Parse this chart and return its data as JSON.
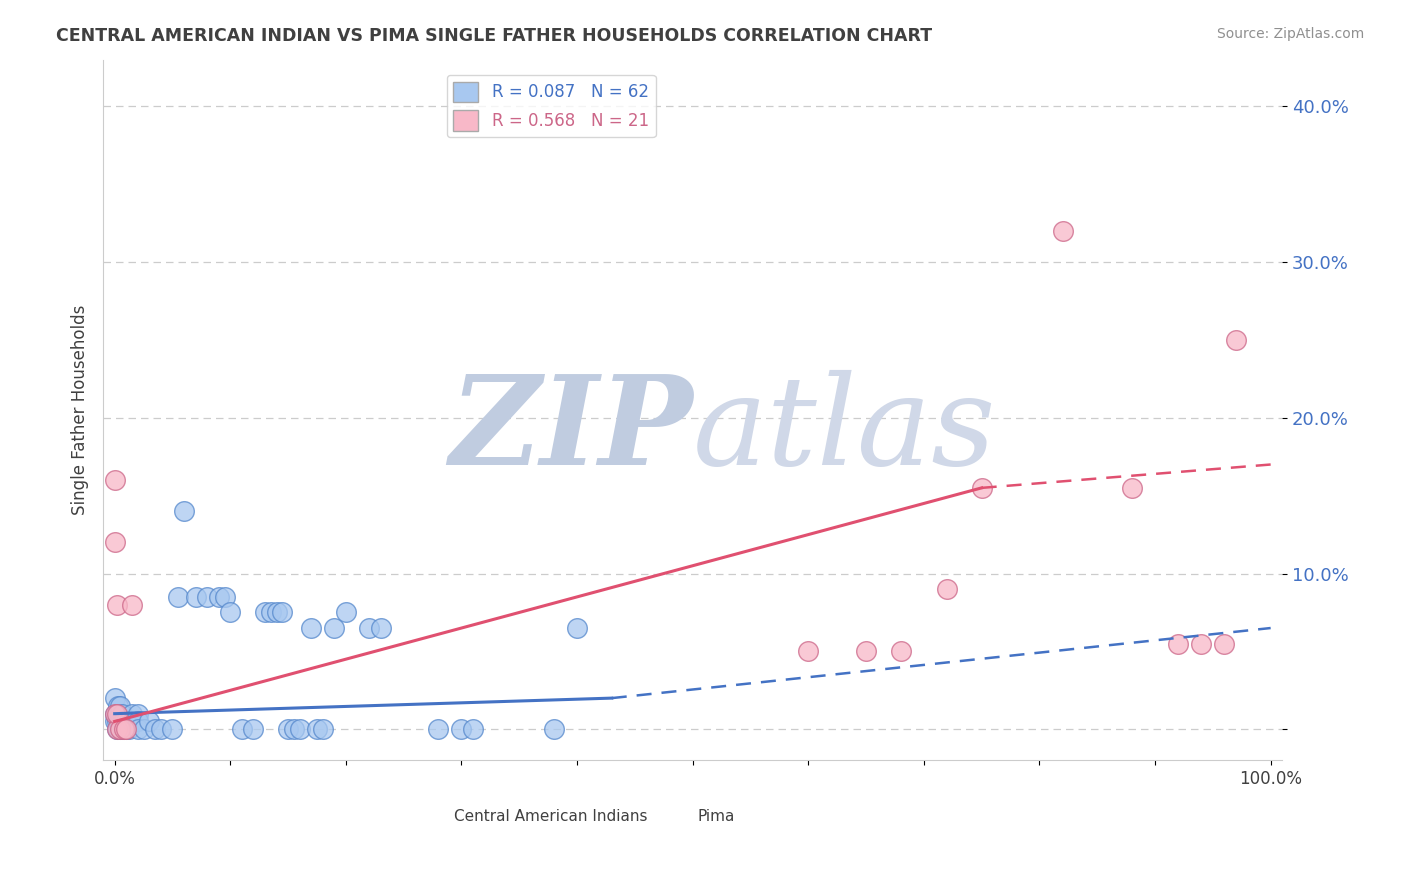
{
  "title": "CENTRAL AMERICAN INDIAN VS PIMA SINGLE FATHER HOUSEHOLDS CORRELATION CHART",
  "source": "Source: ZipAtlas.com",
  "ylabel": "Single Father Households",
  "watermark_zip": "ZIP",
  "watermark_atlas": "atlas",
  "legend_entries": [
    {
      "label": "R = 0.087   N = 62",
      "color": "#a8c8f0"
    },
    {
      "label": "R = 0.568   N = 21",
      "color": "#f8b8c8"
    }
  ],
  "blue_scatter": [
    [
      0.0,
      0.005
    ],
    [
      0.0,
      0.01
    ],
    [
      0.0,
      0.02
    ],
    [
      0.002,
      0.0
    ],
    [
      0.002,
      0.005
    ],
    [
      0.003,
      0.015
    ],
    [
      0.003,
      0.0
    ],
    [
      0.004,
      0.01
    ],
    [
      0.004,
      0.005
    ],
    [
      0.005,
      0.0
    ],
    [
      0.005,
      0.005
    ],
    [
      0.005,
      0.01
    ],
    [
      0.005,
      0.015
    ],
    [
      0.006,
      0.0
    ],
    [
      0.006,
      0.005
    ],
    [
      0.006,
      0.01
    ],
    [
      0.007,
      0.005
    ],
    [
      0.007,
      0.0
    ],
    [
      0.008,
      0.0
    ],
    [
      0.008,
      0.005
    ],
    [
      0.01,
      0.0
    ],
    [
      0.01,
      0.005
    ],
    [
      0.012,
      0.005
    ],
    [
      0.012,
      0.0
    ],
    [
      0.015,
      0.01
    ],
    [
      0.015,
      0.005
    ],
    [
      0.02,
      0.01
    ],
    [
      0.02,
      0.005
    ],
    [
      0.02,
      0.0
    ],
    [
      0.025,
      0.0
    ],
    [
      0.03,
      0.005
    ],
    [
      0.035,
      0.0
    ],
    [
      0.04,
      0.0
    ],
    [
      0.05,
      0.0
    ],
    [
      0.055,
      0.085
    ],
    [
      0.06,
      0.14
    ],
    [
      0.07,
      0.085
    ],
    [
      0.08,
      0.085
    ],
    [
      0.09,
      0.085
    ],
    [
      0.095,
      0.085
    ],
    [
      0.1,
      0.075
    ],
    [
      0.11,
      0.0
    ],
    [
      0.12,
      0.0
    ],
    [
      0.13,
      0.075
    ],
    [
      0.135,
      0.075
    ],
    [
      0.14,
      0.075
    ],
    [
      0.145,
      0.075
    ],
    [
      0.15,
      0.0
    ],
    [
      0.155,
      0.0
    ],
    [
      0.16,
      0.0
    ],
    [
      0.17,
      0.065
    ],
    [
      0.175,
      0.0
    ],
    [
      0.18,
      0.0
    ],
    [
      0.19,
      0.065
    ],
    [
      0.2,
      0.075
    ],
    [
      0.22,
      0.065
    ],
    [
      0.23,
      0.065
    ],
    [
      0.28,
      0.0
    ],
    [
      0.3,
      0.0
    ],
    [
      0.31,
      0.0
    ],
    [
      0.38,
      0.0
    ],
    [
      0.4,
      0.065
    ]
  ],
  "pink_scatter": [
    [
      0.0,
      0.01
    ],
    [
      0.0,
      0.12
    ],
    [
      0.0,
      0.16
    ],
    [
      0.002,
      0.0
    ],
    [
      0.002,
      0.01
    ],
    [
      0.002,
      0.08
    ],
    [
      0.005,
      0.0
    ],
    [
      0.008,
      0.0
    ],
    [
      0.01,
      0.0
    ],
    [
      0.015,
      0.08
    ],
    [
      0.6,
      0.05
    ],
    [
      0.65,
      0.05
    ],
    [
      0.68,
      0.05
    ],
    [
      0.72,
      0.09
    ],
    [
      0.75,
      0.155
    ],
    [
      0.82,
      0.32
    ],
    [
      0.88,
      0.155
    ],
    [
      0.92,
      0.055
    ],
    [
      0.94,
      0.055
    ],
    [
      0.96,
      0.055
    ],
    [
      0.97,
      0.25
    ]
  ],
  "blue_line_solid": {
    "x": [
      0.0,
      0.43
    ],
    "y": [
      0.01,
      0.02
    ]
  },
  "blue_line_dashed": {
    "x": [
      0.43,
      1.0
    ],
    "y": [
      0.02,
      0.065
    ]
  },
  "pink_line_solid": {
    "x": [
      0.0,
      0.75
    ],
    "y": [
      0.005,
      0.155
    ]
  },
  "pink_line_dashed": {
    "x": [
      0.75,
      1.0
    ],
    "y": [
      0.155,
      0.17
    ]
  },
  "yaxis_ticks": [
    0.0,
    0.1,
    0.2,
    0.3,
    0.4
  ],
  "yaxis_labels": [
    "",
    "10.0%",
    "20.0%",
    "30.0%",
    "40.0%"
  ],
  "xlim": [
    -0.01,
    1.01
  ],
  "ylim": [
    -0.02,
    0.43
  ],
  "blue_color": "#a8c8f0",
  "pink_color": "#f8b8c8",
  "blue_edge_color": "#5588cc",
  "pink_edge_color": "#cc6688",
  "blue_line_color": "#4472c4",
  "pink_line_color": "#e05070",
  "grid_color": "#cccccc",
  "yaxis_label_color": "#4472c4",
  "background_color": "#ffffff",
  "title_color": "#404040",
  "source_color": "#909090",
  "watermark_color_zip": "#c0cce0",
  "watermark_color_atlas": "#d0d8e8"
}
